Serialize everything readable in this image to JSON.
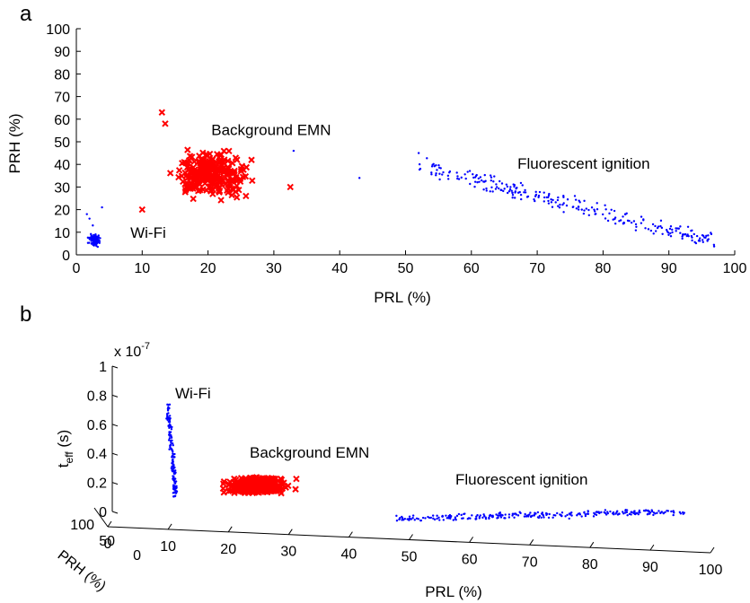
{
  "chart_data": [
    {
      "panel": "a",
      "type": "scatter",
      "xlabel": "PRL (%)",
      "ylabel": "PRH (%)",
      "xlim": [
        0,
        100
      ],
      "ylim": [
        0,
        100
      ],
      "xticks": [
        "0",
        "10",
        "20",
        "30",
        "40",
        "50",
        "60",
        "70",
        "80",
        "90",
        "100"
      ],
      "yticks": [
        "0",
        "10",
        "20",
        "30",
        "40",
        "50",
        "60",
        "70",
        "80",
        "90",
        "100"
      ],
      "grid": false,
      "series": [
        {
          "name": "Wi-Fi",
          "color": "#0000ff",
          "marker": "dot",
          "cluster": {
            "x_range": [
              1.3,
              4.2
            ],
            "y_range": [
              2,
              11
            ],
            "count": 110
          },
          "outliers": [
            [
              2.0,
              16
            ],
            [
              2.5,
              13
            ],
            [
              3.9,
              21
            ],
            [
              1.6,
              18
            ]
          ],
          "label_pos": [
            8.2,
            7.5
          ]
        },
        {
          "name": "Background EMN",
          "color": "#ff0000",
          "marker": "x",
          "cluster": {
            "x_range": [
              11,
              30
            ],
            "y_range": [
              18,
              52
            ],
            "count": 260
          },
          "outliers": [
            [
              13,
              63
            ],
            [
              13.5,
              58
            ],
            [
              10,
              20
            ],
            [
              32.5,
              30
            ]
          ],
          "label_pos": [
            20.5,
            53
          ]
        },
        {
          "name": "Fluorescent ignition",
          "color": "#0000ff",
          "marker": "dot",
          "cluster": {
            "x_range": [
              43,
              97
            ],
            "y_range": [
              2,
              45
            ],
            "trend": "decreasing",
            "count": 260
          },
          "outliers": [
            [
              33,
              46
            ],
            [
              43,
              34
            ],
            [
              52,
              45
            ]
          ],
          "label_pos": [
            67,
            38
          ]
        }
      ]
    },
    {
      "panel": "b",
      "type": "scatter",
      "projection": "3d",
      "xlabel": "PRL (%)",
      "ylabel": "PRH (%)",
      "zlabel_main": "t",
      "zlabel_sub": "eff",
      "zlabel_unit": " (s)",
      "zscale_label": "x 10",
      "zscale_exp": "-7",
      "xlim": [
        0,
        100
      ],
      "ylim": [
        0,
        100
      ],
      "zlim": [
        0,
        1e-07
      ],
      "xticks": [
        "0",
        "10",
        "20",
        "30",
        "40",
        "50",
        "60",
        "70",
        "80",
        "90",
        "100"
      ],
      "yticks": [
        "0",
        "50",
        "100"
      ],
      "zticks": [
        "0",
        "0.2",
        "0.4",
        "0.6",
        "0.8",
        "1"
      ],
      "series": [
        {
          "name": "Wi-Fi",
          "color": "#0000ff",
          "marker": "dot",
          "z_range": [
            0.1,
            0.7
          ],
          "count": 150
        },
        {
          "name": "Background EMN",
          "color": "#ff0000",
          "marker": "x",
          "z_range": [
            0.08,
            0.24
          ],
          "count": 300
        },
        {
          "name": "Fluorescent ignition",
          "color": "#0000ff",
          "marker": "dot",
          "z_range": [
            0.0,
            0.06
          ],
          "count": 260
        }
      ]
    }
  ]
}
